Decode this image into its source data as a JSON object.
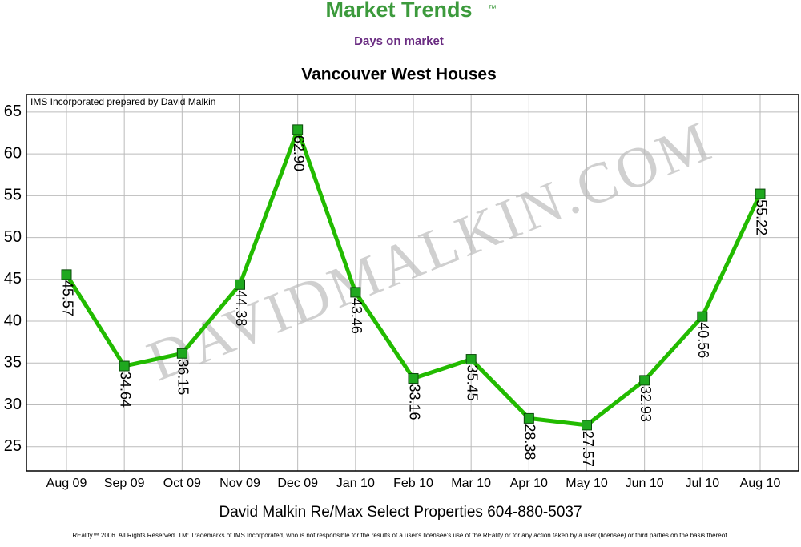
{
  "header": {
    "brand": "Market Trends",
    "trademark": "™",
    "subtitle": "Days on market"
  },
  "chart_data": {
    "type": "line",
    "title": "Vancouver West Houses",
    "source": "IMS Incorporated prepared by David Malkin",
    "watermark": "DAVIDMALKIN.COM",
    "categories": [
      "Aug 09",
      "Sep 09",
      "Oct 09",
      "Nov 09",
      "Dec 09",
      "Jan 10",
      "Feb 10",
      "Mar 10",
      "Apr 10",
      "May 10",
      "Jun 10",
      "Jul 10",
      "Aug 10"
    ],
    "values": [
      45.57,
      34.64,
      36.15,
      44.38,
      62.9,
      43.46,
      33.16,
      35.45,
      28.38,
      27.57,
      32.93,
      40.56,
      55.22
    ],
    "value_labels": [
      "45.57",
      "34.64",
      "36.15",
      "44.38",
      "62.90",
      "43.46",
      "33.16",
      "35.45",
      "28.38",
      "27.57",
      "32.93",
      "40.56",
      "55.22"
    ],
    "color": "#22bb00",
    "ylim": [
      22.1,
      67.1
    ],
    "yticks": [
      25,
      30,
      35,
      40,
      45,
      50,
      55,
      60,
      65
    ],
    "grid": true
  },
  "footer": {
    "contact": "David Malkin Re/Max Select Properties 604-880-5037",
    "disclaimer": "REality™ 2006. All Rights Reserved. TM: Trademarks of IMS Incorporated, who is not responsible for the results of a user's licensee's use of the REality  or for any action taken by a user (licensee) or third parties on the basis thereof."
  }
}
